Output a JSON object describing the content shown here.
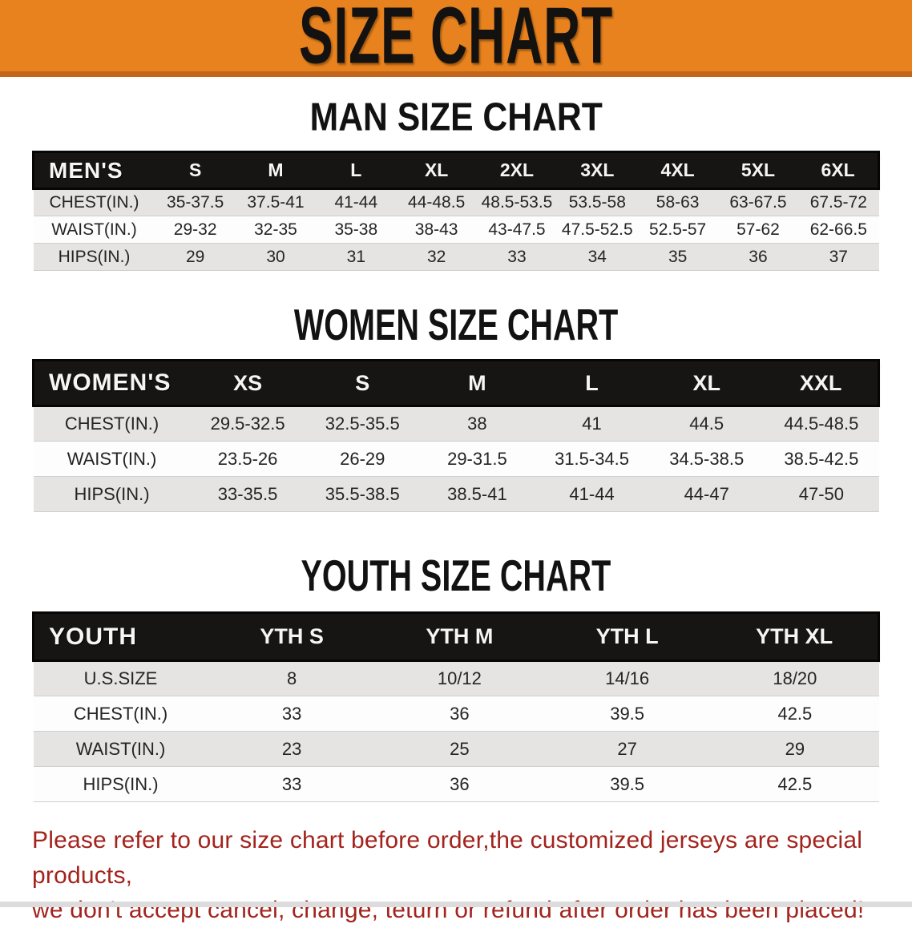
{
  "banner": {
    "title": "SIZE CHART"
  },
  "colors": {
    "banner_bg": "#E8821E",
    "banner_edge": "#C2661C",
    "table_header_bg": "#171513",
    "table_header_text": "#F5F5F5",
    "row_stripe": "#E5E4E2",
    "footer_text": "#A3231D"
  },
  "sections": [
    {
      "heading": "MAN SIZE CHART",
      "table": {
        "label": "MEN'S",
        "columns": [
          "S",
          "M",
          "L",
          "XL",
          "2XL",
          "3XL",
          "4XL",
          "5XL",
          "6XL"
        ],
        "rows": [
          {
            "label": "CHEST(IN.)",
            "values": [
              "35-37.5",
              "37.5-41",
              "41-44",
              "44-48.5",
              "48.5-53.5",
              "53.5-58",
              "58-63",
              "63-67.5",
              "67.5-72"
            ]
          },
          {
            "label": "WAIST(IN.)",
            "values": [
              "29-32",
              "32-35",
              "35-38",
              "38-43",
              "43-47.5",
              "47.5-52.5",
              "52.5-57",
              "57-62",
              "62-66.5"
            ]
          },
          {
            "label": "HIPS(IN.)",
            "values": [
              "29",
              "30",
              "31",
              "32",
              "33",
              "34",
              "35",
              "36",
              "37"
            ]
          }
        ]
      }
    },
    {
      "heading": "WOMEN SIZE CHART",
      "table": {
        "label": "WOMEN'S",
        "columns": [
          "XS",
          "S",
          "M",
          "L",
          "XL",
          "XXL"
        ],
        "rows": [
          {
            "label": "CHEST(IN.)",
            "values": [
              "29.5-32.5",
              "32.5-35.5",
              "38",
              "41",
              "44.5",
              "44.5-48.5"
            ]
          },
          {
            "label": "WAIST(IN.)",
            "values": [
              "23.5-26",
              "26-29",
              "29-31.5",
              "31.5-34.5",
              "34.5-38.5",
              "38.5-42.5"
            ]
          },
          {
            "label": "HIPS(IN.)",
            "values": [
              "33-35.5",
              "35.5-38.5",
              "38.5-41",
              "41-44",
              "44-47",
              "47-50"
            ]
          }
        ]
      }
    },
    {
      "heading": "YOUTH SIZE CHART",
      "table": {
        "label": "YOUTH",
        "columns": [
          "YTH S",
          "YTH M",
          "YTH L",
          "YTH XL"
        ],
        "rows": [
          {
            "label": "U.S.SIZE",
            "values": [
              "8",
              "10/12",
              "14/16",
              "18/20"
            ]
          },
          {
            "label": "CHEST(IN.)",
            "values": [
              "33",
              "36",
              "39.5",
              "42.5"
            ]
          },
          {
            "label": "WAIST(IN.)",
            "values": [
              "23",
              "25",
              "27",
              "29"
            ]
          },
          {
            "label": "HIPS(IN.)",
            "values": [
              "33",
              "36",
              "39.5",
              "42.5"
            ]
          }
        ]
      }
    }
  ],
  "footer": {
    "line1": "Please refer to our size chart before order,the customized jerseys are special products,",
    "line2": "we don't accept cancel, change, teturn or refund after order has been placed!"
  }
}
